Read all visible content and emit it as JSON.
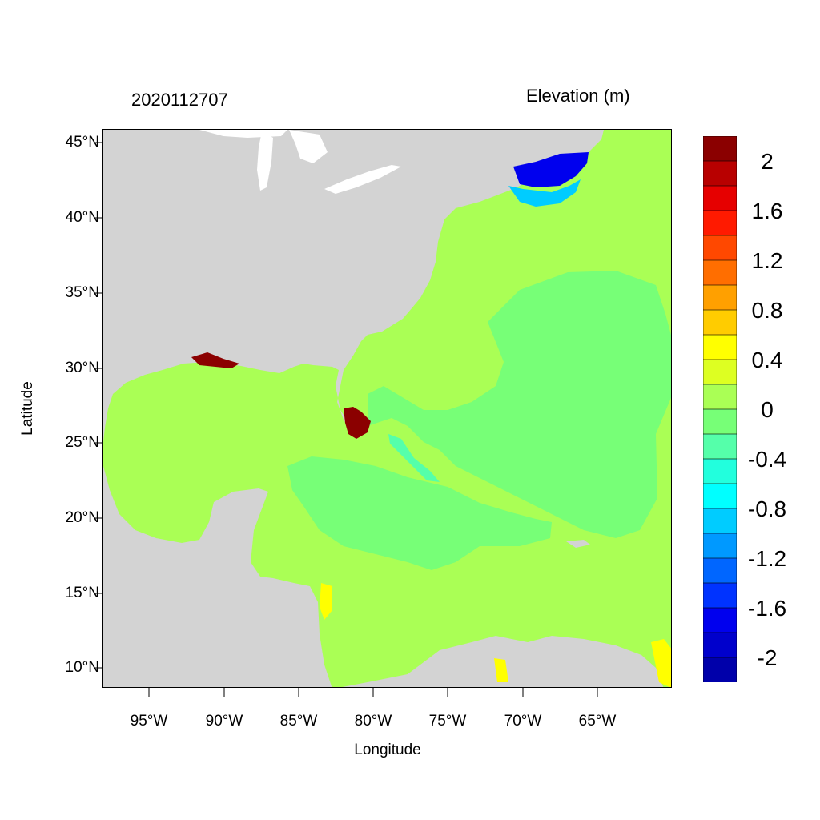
{
  "header": {
    "timestamp": "2020112707",
    "variable_title": "Elevation (m)"
  },
  "axes": {
    "x_title": "Longitude",
    "y_title": "Latitude",
    "x_ticks": [
      "95°W",
      "90°W",
      "85°W",
      "80°W",
      "75°W",
      "70°W",
      "65°W"
    ],
    "y_ticks": [
      "45°N",
      "40°N",
      "35°N",
      "30°N",
      "25°N",
      "20°N",
      "15°N",
      "10°N"
    ],
    "lon_range": [
      -98,
      -60
    ],
    "lat_range": [
      8.5,
      46
    ]
  },
  "colorbar": {
    "labels": [
      "2",
      "1.6",
      "1.2",
      "0.8",
      "0.4",
      "0",
      "-0.4",
      "-0.8",
      "-1.2",
      "-1.6",
      "-2"
    ],
    "colors": [
      "#8b0000",
      "#b80000",
      "#e60000",
      "#ff1a00",
      "#ff4800",
      "#ff6e00",
      "#ffa000",
      "#ffcc00",
      "#ffff00",
      "#ddff22",
      "#aaff55",
      "#77ff77",
      "#55ffaa",
      "#22ffdd",
      "#00ffff",
      "#00ccff",
      "#0099ff",
      "#0066ff",
      "#0033ff",
      "#0000ee",
      "#0000cc",
      "#0000aa"
    ]
  },
  "colors": {
    "land": "#d3d3d3",
    "lakes": "#ffffff",
    "ocean_zero": "#aaff55",
    "ocean_minus": "#77ff77",
    "ocean_minus2": "#55ffaa",
    "surge_high": "#8b0000",
    "surge_low": "#0000ee"
  }
}
